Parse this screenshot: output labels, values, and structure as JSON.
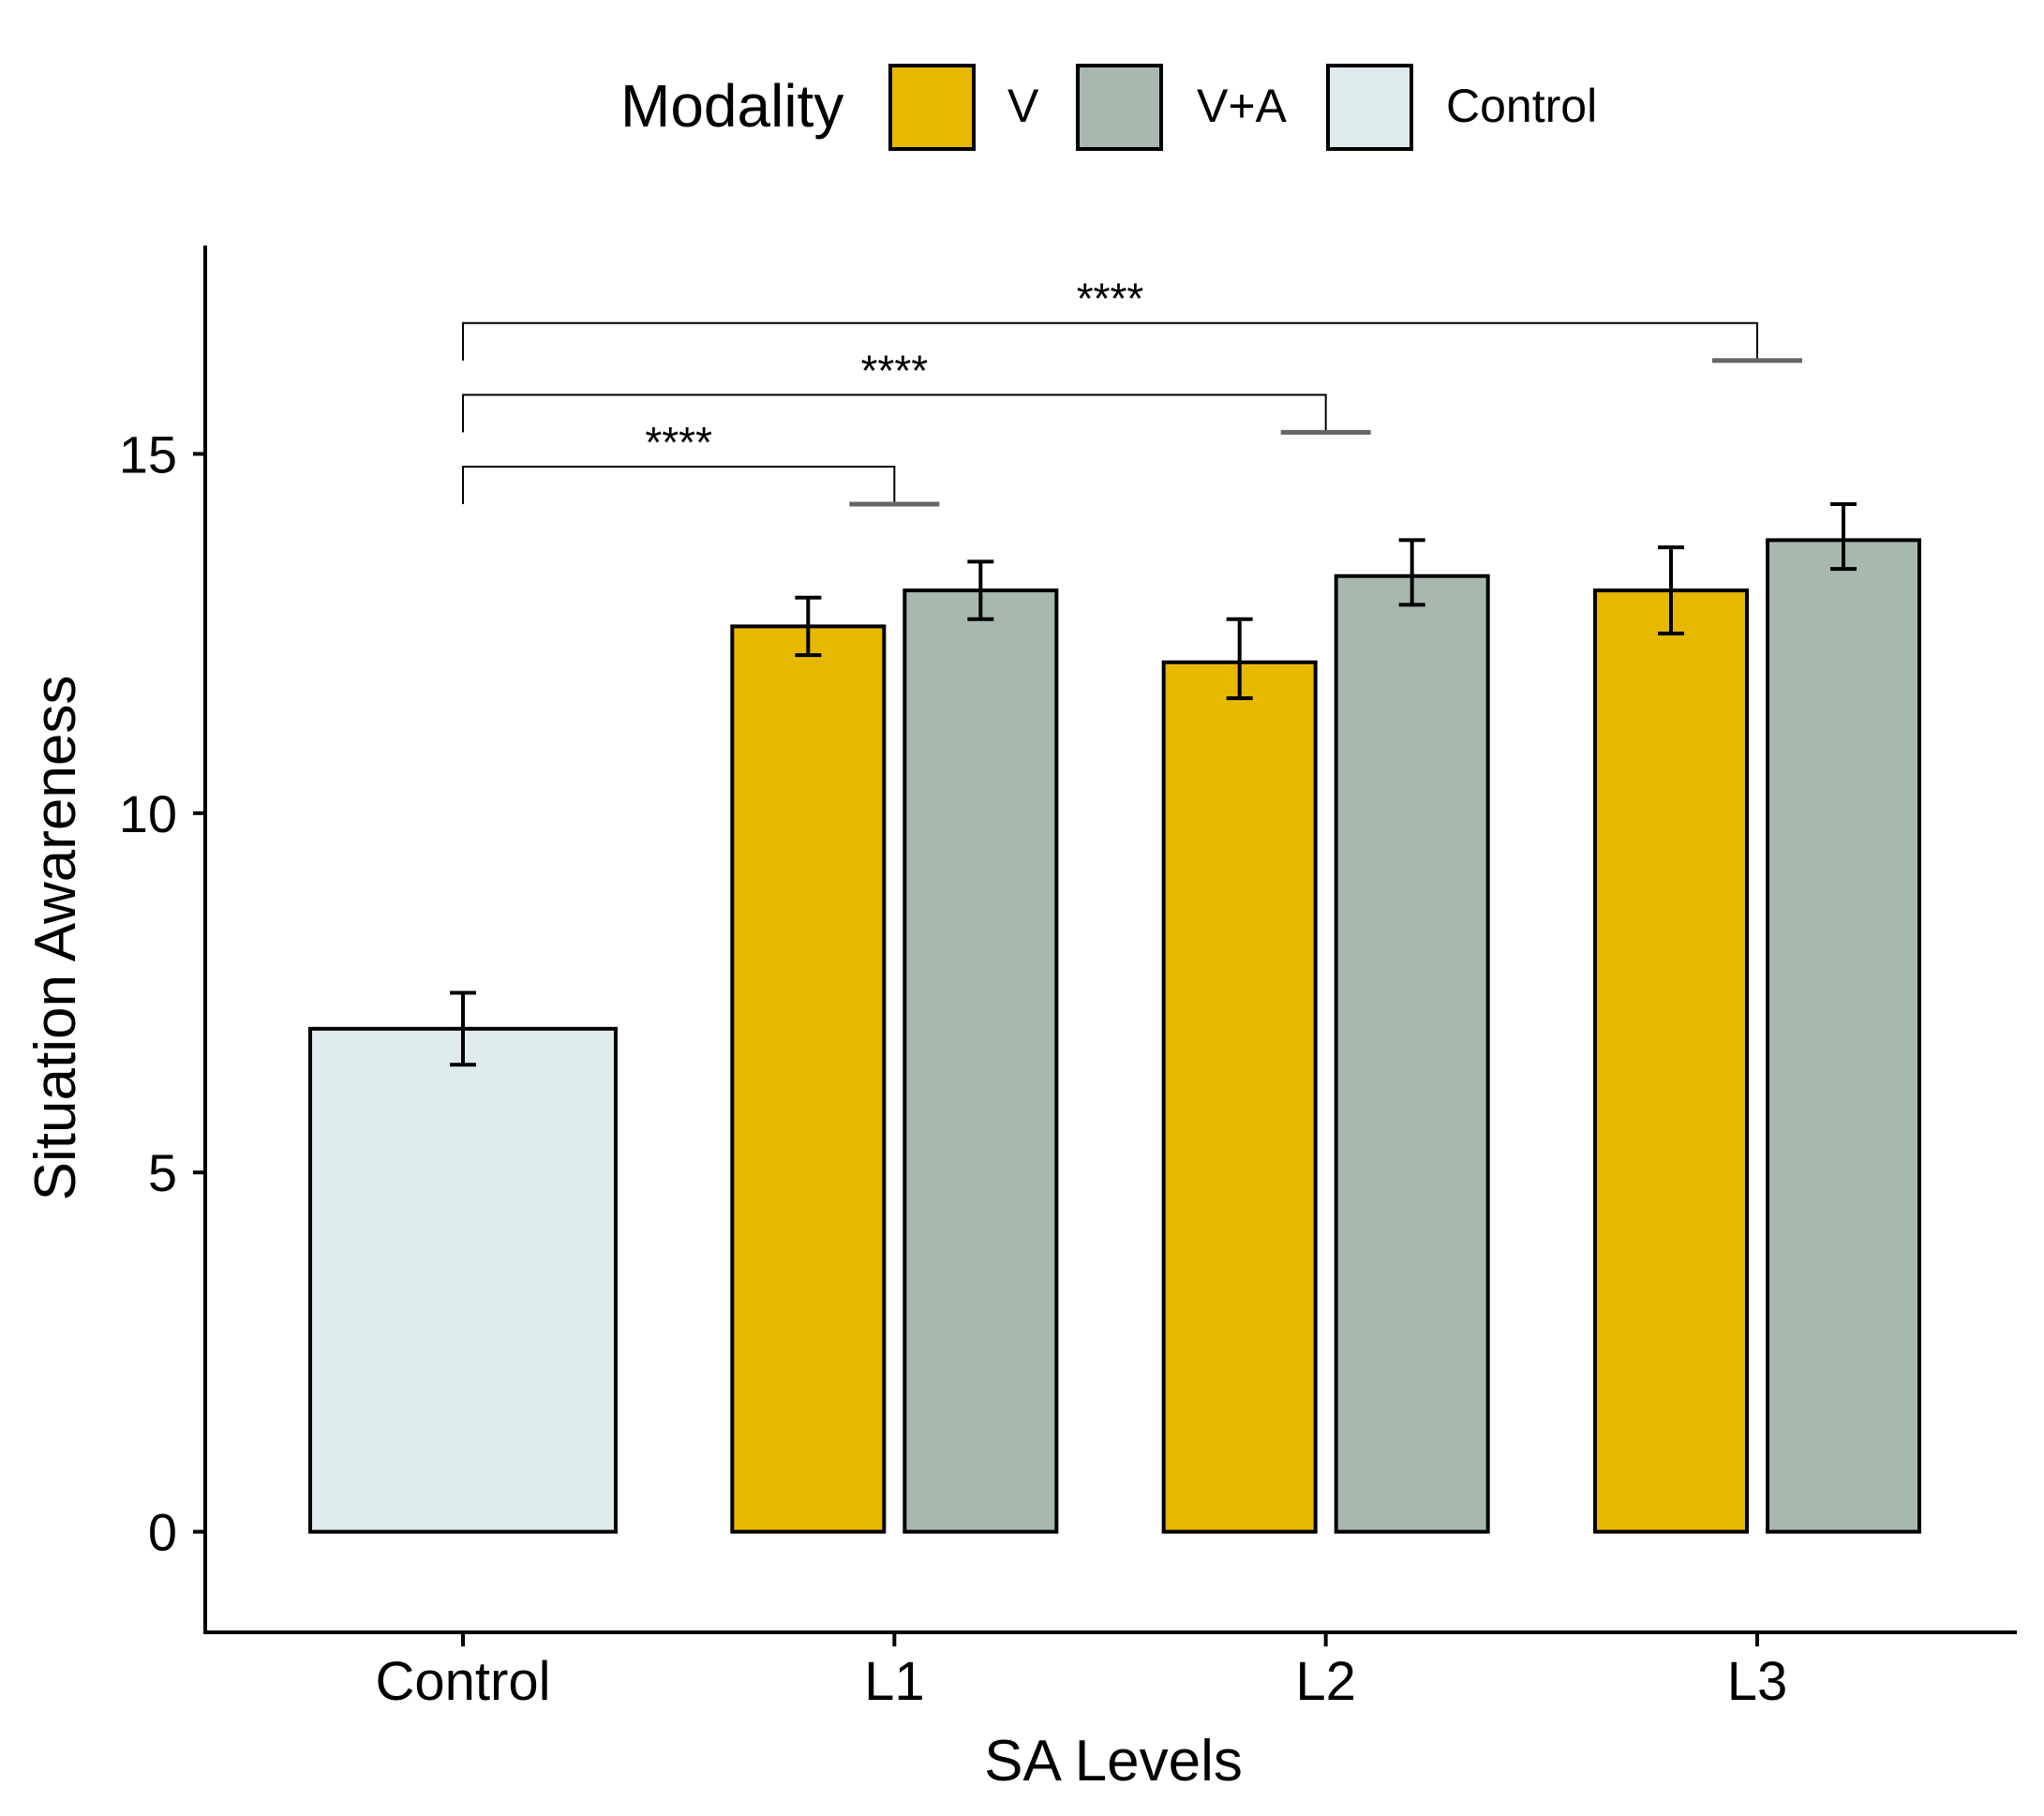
{
  "legend": {
    "title": "Modality",
    "items": [
      {
        "label": "V",
        "color": "#E6B800"
      },
      {
        "label": "V+A",
        "color": "#A8B8AF"
      },
      {
        "label": "Control",
        "color": "#E0EBED"
      }
    ]
  },
  "chart_data": {
    "type": "bar",
    "title": "",
    "xlabel": "SA Levels",
    "ylabel": "Situation Awareness",
    "ylim": [
      -1.4,
      17.9
    ],
    "yticks": [
      0,
      5,
      10,
      15
    ],
    "categories": [
      "Control",
      "L1",
      "L2",
      "L3"
    ],
    "series": [
      {
        "name": "Control",
        "color": "#E0EBED",
        "values": [
          7.0,
          null,
          null,
          null
        ],
        "error_low": [
          6.5,
          null,
          null,
          null
        ],
        "error_high": [
          7.5,
          null,
          null,
          null
        ]
      },
      {
        "name": "V",
        "color": "#E6B800",
        "values": [
          null,
          12.6,
          12.1,
          13.1
        ],
        "error_low": [
          null,
          12.2,
          11.6,
          12.5
        ],
        "error_high": [
          null,
          13.0,
          12.7,
          13.7
        ]
      },
      {
        "name": "V+A",
        "color": "#A8B8AF",
        "values": [
          null,
          13.1,
          13.3,
          13.8
        ],
        "error_low": [
          null,
          12.7,
          12.9,
          13.4
        ],
        "error_high": [
          null,
          13.5,
          13.8,
          14.3
        ]
      }
    ],
    "significance": [
      {
        "from": "Control",
        "to": "L1",
        "label": "****",
        "bracket_y": 14.3
      },
      {
        "from": "Control",
        "to": "L2",
        "label": "****",
        "bracket_y": 15.3
      },
      {
        "from": "Control",
        "to": "L3",
        "label": "****",
        "bracket_y": 16.3
      }
    ]
  }
}
